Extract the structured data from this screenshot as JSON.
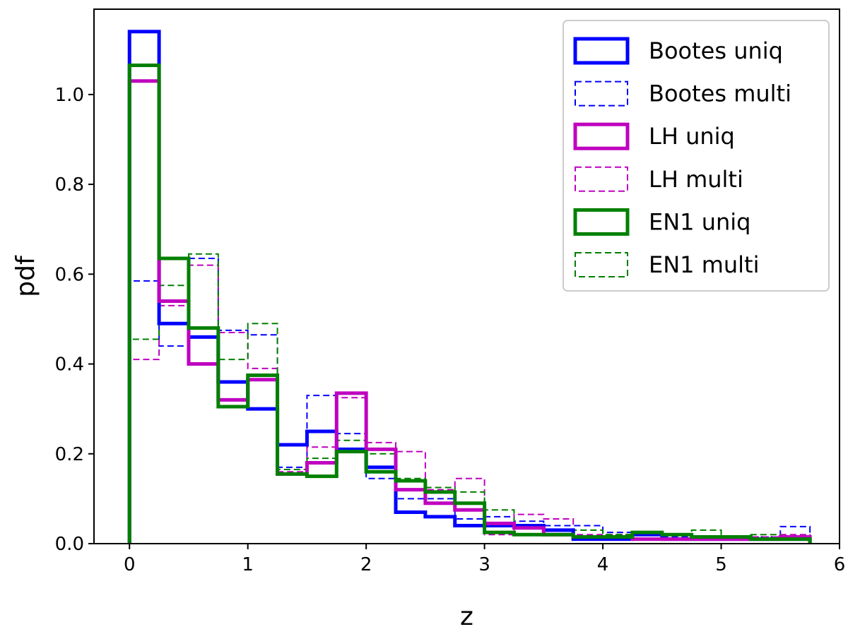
{
  "chart_data": {
    "type": "step-histogram",
    "xlabel": "z",
    "ylabel": "pdf",
    "xlim": [
      -0.3,
      6.0
    ],
    "ylim": [
      0.0,
      1.19
    ],
    "xticks": [
      0,
      1,
      2,
      3,
      4,
      5,
      6
    ],
    "yticks": [
      0.0,
      0.2,
      0.4,
      0.6,
      0.8,
      1.0
    ],
    "xtick_labels": [
      "0",
      "1",
      "2",
      "3",
      "4",
      "5",
      "6"
    ],
    "ytick_labels": [
      "0.0",
      "0.2",
      "0.4",
      "0.6",
      "0.8",
      "1.0"
    ],
    "grid": false,
    "legend_position": "top-right",
    "bin_edges": [
      0,
      0.25,
      0.5,
      0.75,
      1.0,
      1.25,
      1.5,
      1.75,
      2.0,
      2.25,
      2.5,
      2.75,
      3.0,
      3.25,
      3.5,
      3.75,
      4.0,
      4.25,
      4.5,
      4.75,
      5.0,
      5.25,
      5.5,
      5.75
    ],
    "series": [
      {
        "name": "Bootes uniq",
        "color": "#0000ff",
        "style": "solid",
        "values": [
          1.14,
          0.49,
          0.46,
          0.36,
          0.3,
          0.22,
          0.25,
          0.21,
          0.17,
          0.07,
          0.06,
          0.04,
          0.04,
          0.04,
          0.03,
          0.01,
          0.01,
          0.02,
          0.01,
          0.01,
          0.01,
          0.01,
          0.01
        ]
      },
      {
        "name": "Bootes multi",
        "color": "#0000ff",
        "style": "dashed",
        "values": [
          0.585,
          0.44,
          0.635,
          0.475,
          0.465,
          0.17,
          0.33,
          0.245,
          0.145,
          0.1,
          0.1,
          0.055,
          0.06,
          0.05,
          0.04,
          0.04,
          0.025,
          0.02,
          0.015,
          0.015,
          0.015,
          0.015,
          0.038
        ]
      },
      {
        "name": "LH uniq",
        "color": "#bf00bf",
        "style": "solid",
        "values": [
          1.03,
          0.54,
          0.4,
          0.32,
          0.365,
          0.155,
          0.18,
          0.335,
          0.21,
          0.12,
          0.09,
          0.075,
          0.045,
          0.035,
          0.02,
          0.015,
          0.015,
          0.01,
          0.01,
          0.01,
          0.01,
          0.01,
          0.015
        ]
      },
      {
        "name": "LH multi",
        "color": "#bf00bf",
        "style": "dashed",
        "values": [
          0.41,
          0.53,
          0.62,
          0.47,
          0.39,
          0.16,
          0.215,
          0.325,
          0.225,
          0.205,
          0.12,
          0.145,
          0.02,
          0.065,
          0.055,
          0.02,
          0.02,
          0.02,
          0.02,
          0.015,
          0.015,
          0.015,
          0.02
        ]
      },
      {
        "name": "EN1 uniq",
        "color": "#008000",
        "style": "solid",
        "values": [
          1.065,
          0.635,
          0.48,
          0.305,
          0.375,
          0.155,
          0.15,
          0.205,
          0.16,
          0.14,
          0.115,
          0.09,
          0.025,
          0.02,
          0.02,
          0.015,
          0.015,
          0.025,
          0.02,
          0.015,
          0.015,
          0.01,
          0.01
        ]
      },
      {
        "name": "EN1 multi",
        "color": "#008000",
        "style": "dashed",
        "values": [
          0.455,
          0.575,
          0.645,
          0.41,
          0.49,
          0.165,
          0.19,
          0.23,
          0.2,
          0.145,
          0.125,
          0.115,
          0.075,
          0.035,
          0.03,
          0.03,
          0.02,
          0.02,
          0.02,
          0.03,
          0.015,
          0.02,
          0.01
        ]
      }
    ]
  }
}
